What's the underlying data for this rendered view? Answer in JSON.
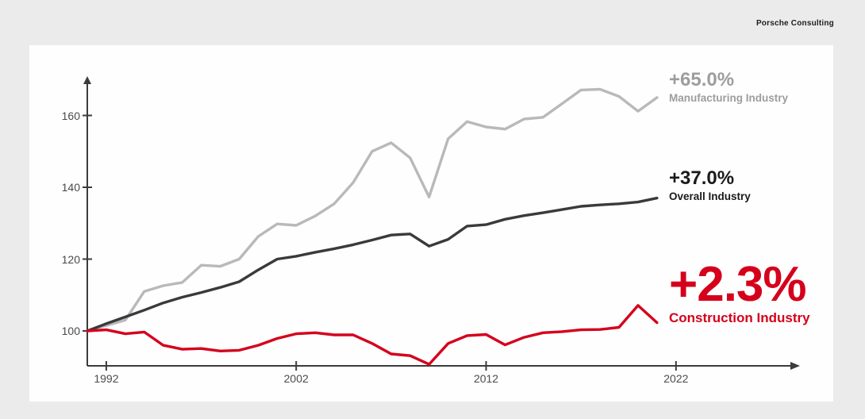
{
  "header": {
    "brand": "Porsche Consulting"
  },
  "chart_data": {
    "type": "line",
    "title": "",
    "xlabel": "",
    "ylabel": "",
    "x": [
      1991,
      1992,
      1993,
      1994,
      1995,
      1996,
      1997,
      1998,
      1999,
      2000,
      2001,
      2002,
      2003,
      2004,
      2005,
      2006,
      2007,
      2008,
      2009,
      2010,
      2011,
      2012,
      2013,
      2014,
      2015,
      2016,
      2017,
      2018,
      2019,
      2020,
      2021
    ],
    "x_ticks": [
      1992,
      2002,
      2012,
      2022
    ],
    "y_ticks": [
      100,
      120,
      140,
      160
    ],
    "xlim": [
      1991,
      2028.5
    ],
    "ylim": [
      90,
      170
    ],
    "grid": false,
    "legend_position": "right-annotations",
    "axis_color": "#3c3c3c",
    "series": [
      {
        "name": "Manufacturing Industry",
        "delta_label": "+65.0%",
        "color": "#b9b9b9",
        "label_color": "#9d9d9d",
        "values": [
          100,
          101.5,
          103,
          111,
          112.6,
          113.5,
          118.3,
          118,
          120,
          126.3,
          129.8,
          129.4,
          132,
          135.4,
          141.3,
          150,
          152.4,
          148.2,
          137.3,
          153.5,
          158.3,
          156.8,
          156.2,
          159,
          159.5,
          163.3,
          167.1,
          167.3,
          165.3,
          161.2,
          165
        ]
      },
      {
        "name": "Overall Industry",
        "delta_label": "+37.0%",
        "color": "#3a3a3a",
        "label_color": "#1a1a1a",
        "values": [
          100,
          102,
          103.9,
          105.8,
          107.8,
          109.4,
          110.7,
          112.1,
          113.7,
          117,
          120,
          120.8,
          121.9,
          122.9,
          124,
          125.3,
          126.7,
          127,
          123.6,
          125.5,
          129.2,
          129.6,
          131.1,
          132.1,
          132.9,
          133.8,
          134.7,
          135.1,
          135.4,
          135.9,
          137
        ]
      },
      {
        "name": "Construction Industry",
        "delta_label": "+2.3%",
        "color": "#d5001c",
        "label_color": "#d5001c",
        "values": [
          100,
          100.3,
          99.2,
          99.7,
          96,
          94.9,
          95.1,
          94.4,
          94.6,
          96,
          97.9,
          99.2,
          99.5,
          98.9,
          98.9,
          96.5,
          93.6,
          93.1,
          90.7,
          96.5,
          98.7,
          99,
          96.1,
          98.2,
          99.5,
          99.8,
          100.3,
          100.4,
          101,
          107.1,
          102.3
        ]
      }
    ]
  }
}
